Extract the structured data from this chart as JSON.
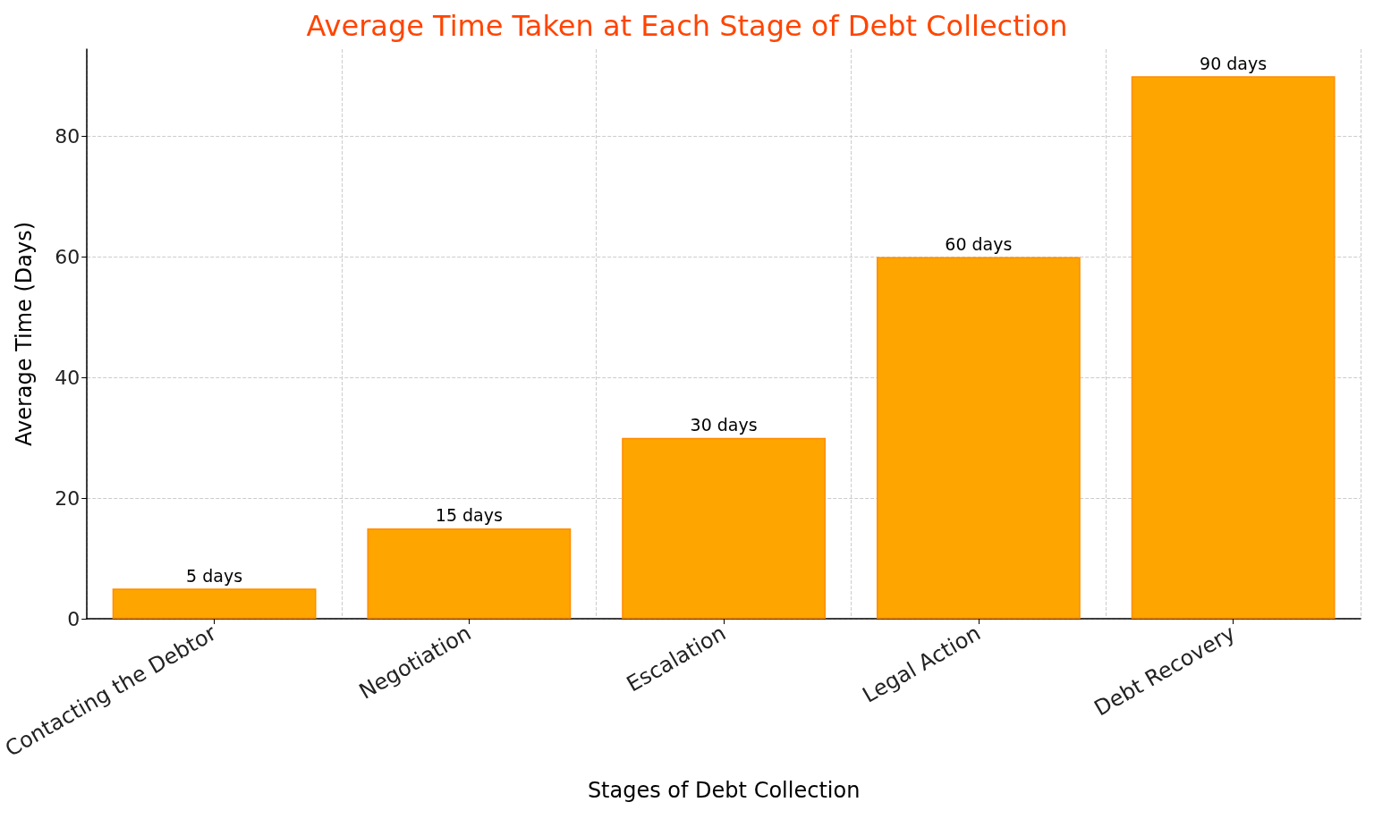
{
  "chart_data": {
    "type": "bar",
    "title": "Average Time Taken at Each Stage of Debt Collection",
    "xlabel": "Stages of Debt Collection",
    "ylabel": "Average Time (Days)",
    "categories": [
      "Contacting the Debtor",
      "Negotiation",
      "Escalation",
      "Legal Action",
      "Debt Recovery"
    ],
    "values": [
      5,
      15,
      30,
      60,
      90
    ],
    "value_labels": [
      "5 days",
      "15 days",
      "30 days",
      "60 days",
      "90 days"
    ],
    "color": "#ffa500",
    "ylim": [
      0,
      94.5
    ],
    "yticks": [
      0,
      20,
      40,
      60,
      80
    ],
    "grid": true
  }
}
